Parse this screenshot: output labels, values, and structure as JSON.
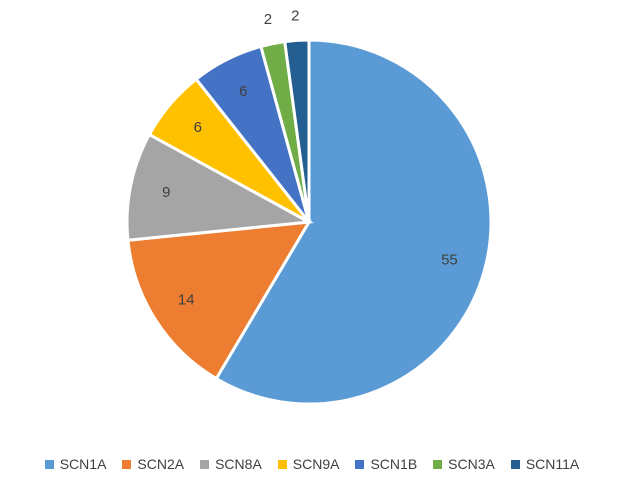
{
  "chart_data": {
    "type": "pie",
    "categories": [
      "SCN1A",
      "SCN2A",
      "SCN8A",
      "SCN9A",
      "SCN1B",
      "SCN3A",
      "SCN11A"
    ],
    "values": [
      55,
      14,
      9,
      6,
      6,
      2,
      2
    ],
    "colors": [
      "#5b9bd5",
      "#ed7d31",
      "#a5a5a5",
      "#ffc000",
      "#4472c4",
      "#70ad47",
      "#255e91"
    ],
    "legend": "bottom"
  }
}
